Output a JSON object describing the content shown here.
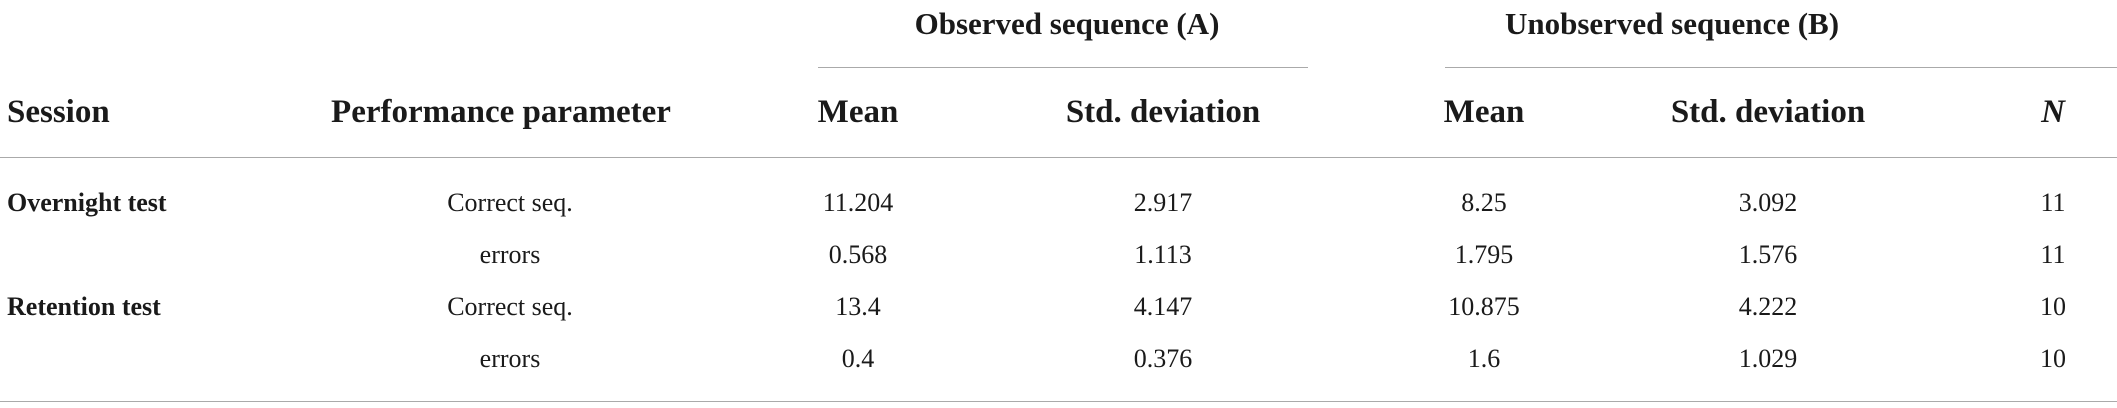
{
  "table": {
    "group_headers": [
      "Observed sequence (A)",
      "Unobserved sequence (B)"
    ],
    "columns": [
      "Session",
      "Performance parameter",
      "Mean",
      "Std. deviation",
      "Mean",
      "Std. deviation",
      "N"
    ],
    "rows": [
      {
        "session": "Overnight test",
        "parameter": "Correct seq.",
        "a_mean": "11.204",
        "a_sd": "2.917",
        "b_mean": "8.25",
        "b_sd": "3.092",
        "n": "11"
      },
      {
        "session": "",
        "parameter": "errors",
        "a_mean": "0.568",
        "a_sd": "1.113",
        "b_mean": "1.795",
        "b_sd": "1.576",
        "n": "11"
      },
      {
        "session": "Retention test",
        "parameter": "Correct seq.",
        "a_mean": "13.4",
        "a_sd": "4.147",
        "b_mean": "10.875",
        "b_sd": "4.222",
        "n": "10"
      },
      {
        "session": "",
        "parameter": "errors",
        "a_mean": "0.4",
        "a_sd": "0.376",
        "b_mean": "1.6",
        "b_sd": "1.029",
        "n": "10"
      }
    ]
  }
}
